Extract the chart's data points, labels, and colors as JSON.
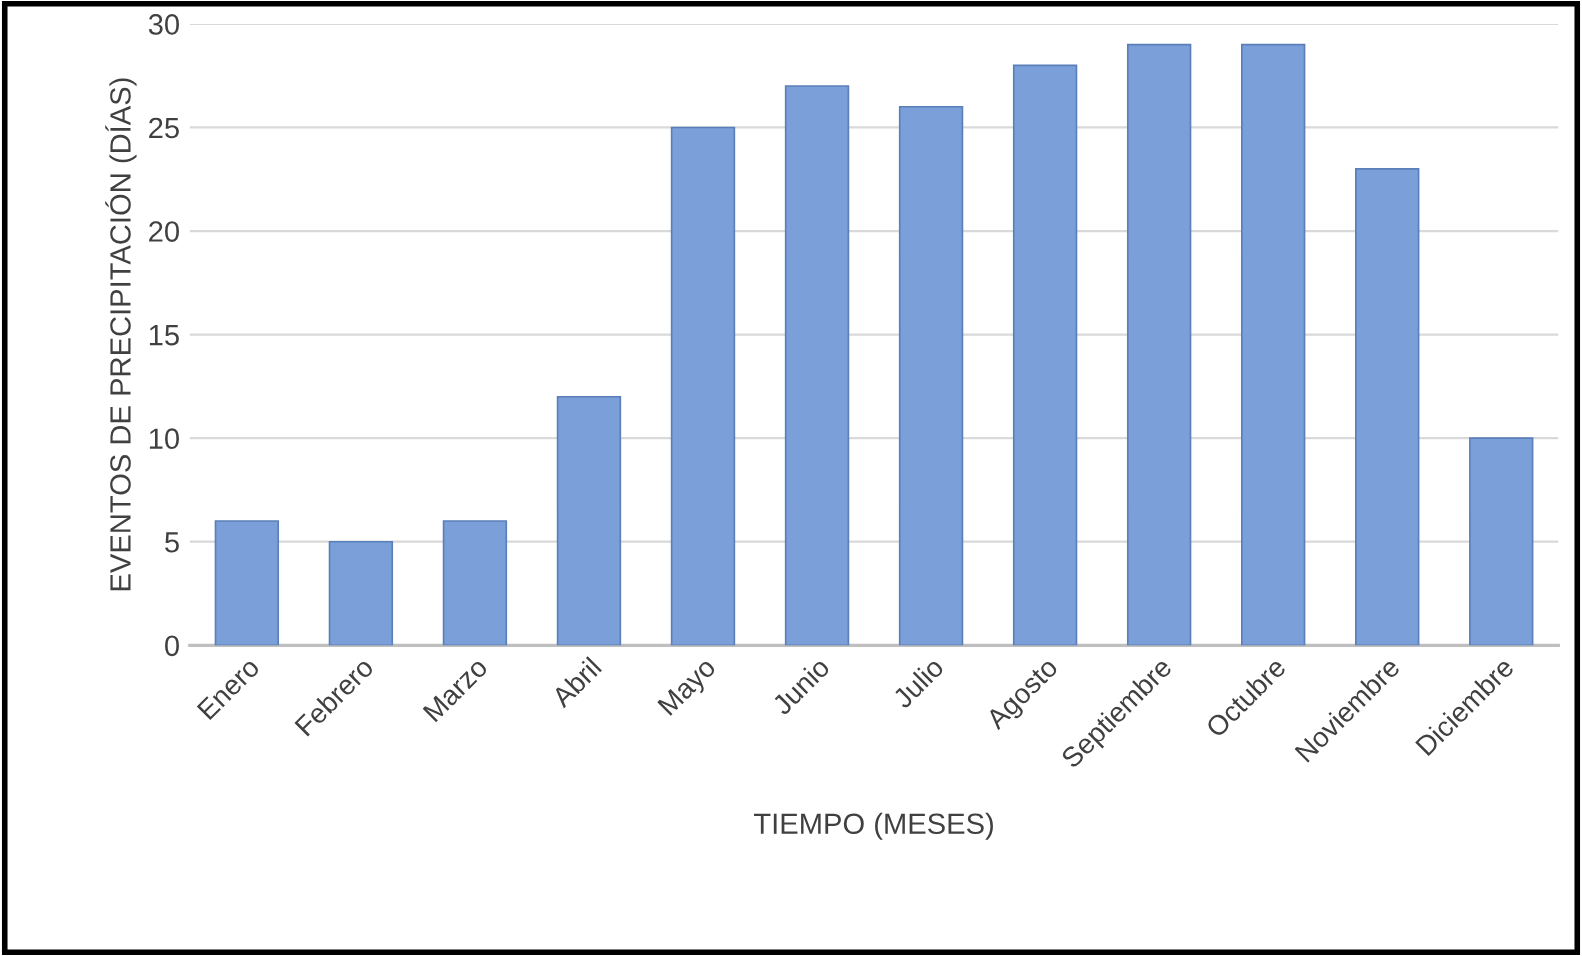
{
  "chart_data": {
    "type": "bar",
    "xlabel": "TIEMPO (MESES)",
    "ylabel": "EVENTOS DE PRECIPITACIÓN (DÍAS)",
    "categories": [
      "Enero",
      "Febrero",
      "Marzo",
      "Abril",
      "Mayo",
      "Junio",
      "Julio",
      "Agosto",
      "Septiembre",
      "Octubre",
      "Noviembre",
      "Diciembre"
    ],
    "values": [
      6,
      5,
      6,
      12,
      25,
      27,
      26,
      28,
      29,
      29,
      23,
      10
    ],
    "color": "#7b9fd8",
    "ylim": [
      0,
      30
    ],
    "yticks": [
      0,
      5,
      10,
      15,
      20,
      25,
      30
    ],
    "grid": "y",
    "legend": false
  }
}
